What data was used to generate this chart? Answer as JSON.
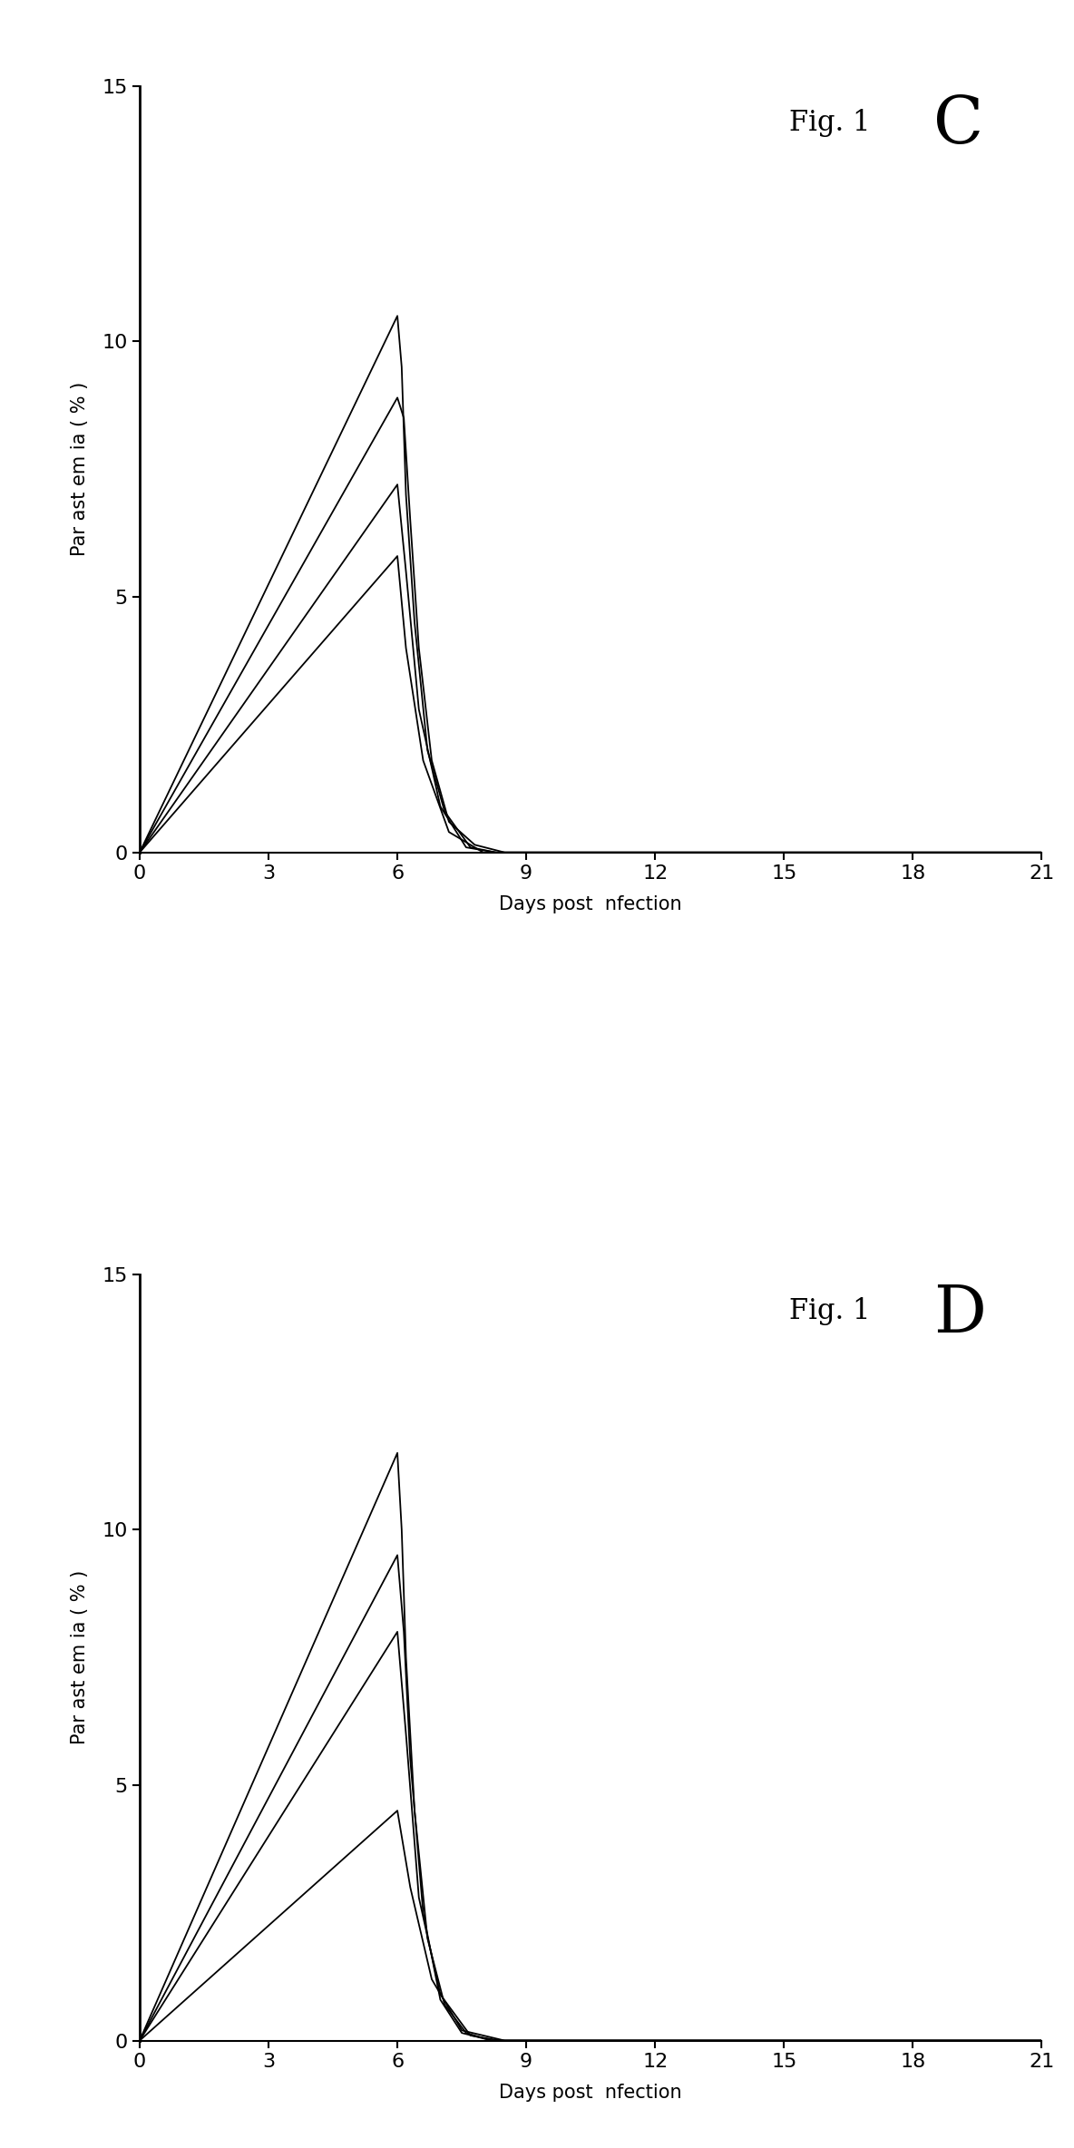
{
  "fig_c": {
    "label_small": "Fig. 1",
    "label_large": "C",
    "lines": [
      {
        "x": [
          0,
          6,
          6.15,
          6.3,
          6.5,
          6.8,
          7.2,
          7.8,
          8.5,
          21
        ],
        "y": [
          0.0,
          8.9,
          8.5,
          6.5,
          4.0,
          1.8,
          0.6,
          0.15,
          0.0,
          0.0
        ]
      },
      {
        "x": [
          0,
          6,
          6.1,
          6.2,
          6.4,
          6.7,
          7.1,
          7.7,
          8.3,
          21
        ],
        "y": [
          0.0,
          10.5,
          9.5,
          7.0,
          4.5,
          2.0,
          0.8,
          0.1,
          0.0,
          0.0
        ]
      },
      {
        "x": [
          0,
          6,
          6.2,
          6.5,
          7.0,
          7.6,
          8.3,
          21
        ],
        "y": [
          0.0,
          7.2,
          5.5,
          2.8,
          0.9,
          0.1,
          0.0,
          0.0
        ]
      },
      {
        "x": [
          0,
          6,
          6.2,
          6.6,
          7.2,
          8.0,
          21
        ],
        "y": [
          0.0,
          5.8,
          4.0,
          1.8,
          0.4,
          0.0,
          0.0
        ]
      }
    ]
  },
  "fig_d": {
    "label_small": "Fig. 1",
    "label_large": "D",
    "lines": [
      {
        "x": [
          0,
          6,
          6.1,
          6.2,
          6.4,
          6.7,
          7.1,
          7.6,
          8.2,
          21
        ],
        "y": [
          0.0,
          11.5,
          10.0,
          7.5,
          4.5,
          2.0,
          0.7,
          0.15,
          0.0,
          0.0
        ]
      },
      {
        "x": [
          0,
          6,
          6.15,
          6.3,
          6.6,
          7.0,
          7.5,
          8.2,
          21
        ],
        "y": [
          0.0,
          9.5,
          8.0,
          5.5,
          2.5,
          0.8,
          0.15,
          0.0,
          0.0
        ]
      },
      {
        "x": [
          0,
          6,
          6.2,
          6.5,
          7.0,
          7.7,
          8.4,
          21
        ],
        "y": [
          0.0,
          8.0,
          6.0,
          2.8,
          0.9,
          0.1,
          0.0,
          0.0
        ]
      },
      {
        "x": [
          0,
          6,
          6.3,
          6.8,
          7.5,
          8.5,
          21
        ],
        "y": [
          0.0,
          4.5,
          3.0,
          1.2,
          0.2,
          0.0,
          0.0
        ]
      }
    ]
  },
  "ylim": [
    0,
    15
  ],
  "xlim": [
    0,
    21
  ],
  "yticks": [
    0,
    5,
    10,
    15
  ],
  "xticks": [
    0,
    3,
    6,
    9,
    12,
    15,
    18,
    21
  ],
  "ylabel": "Par ast em ia ( % )",
  "xlabel": "Days post  nfection",
  "line_color": "#000000",
  "line_width": 1.3,
  "bg_color": "#ffffff"
}
